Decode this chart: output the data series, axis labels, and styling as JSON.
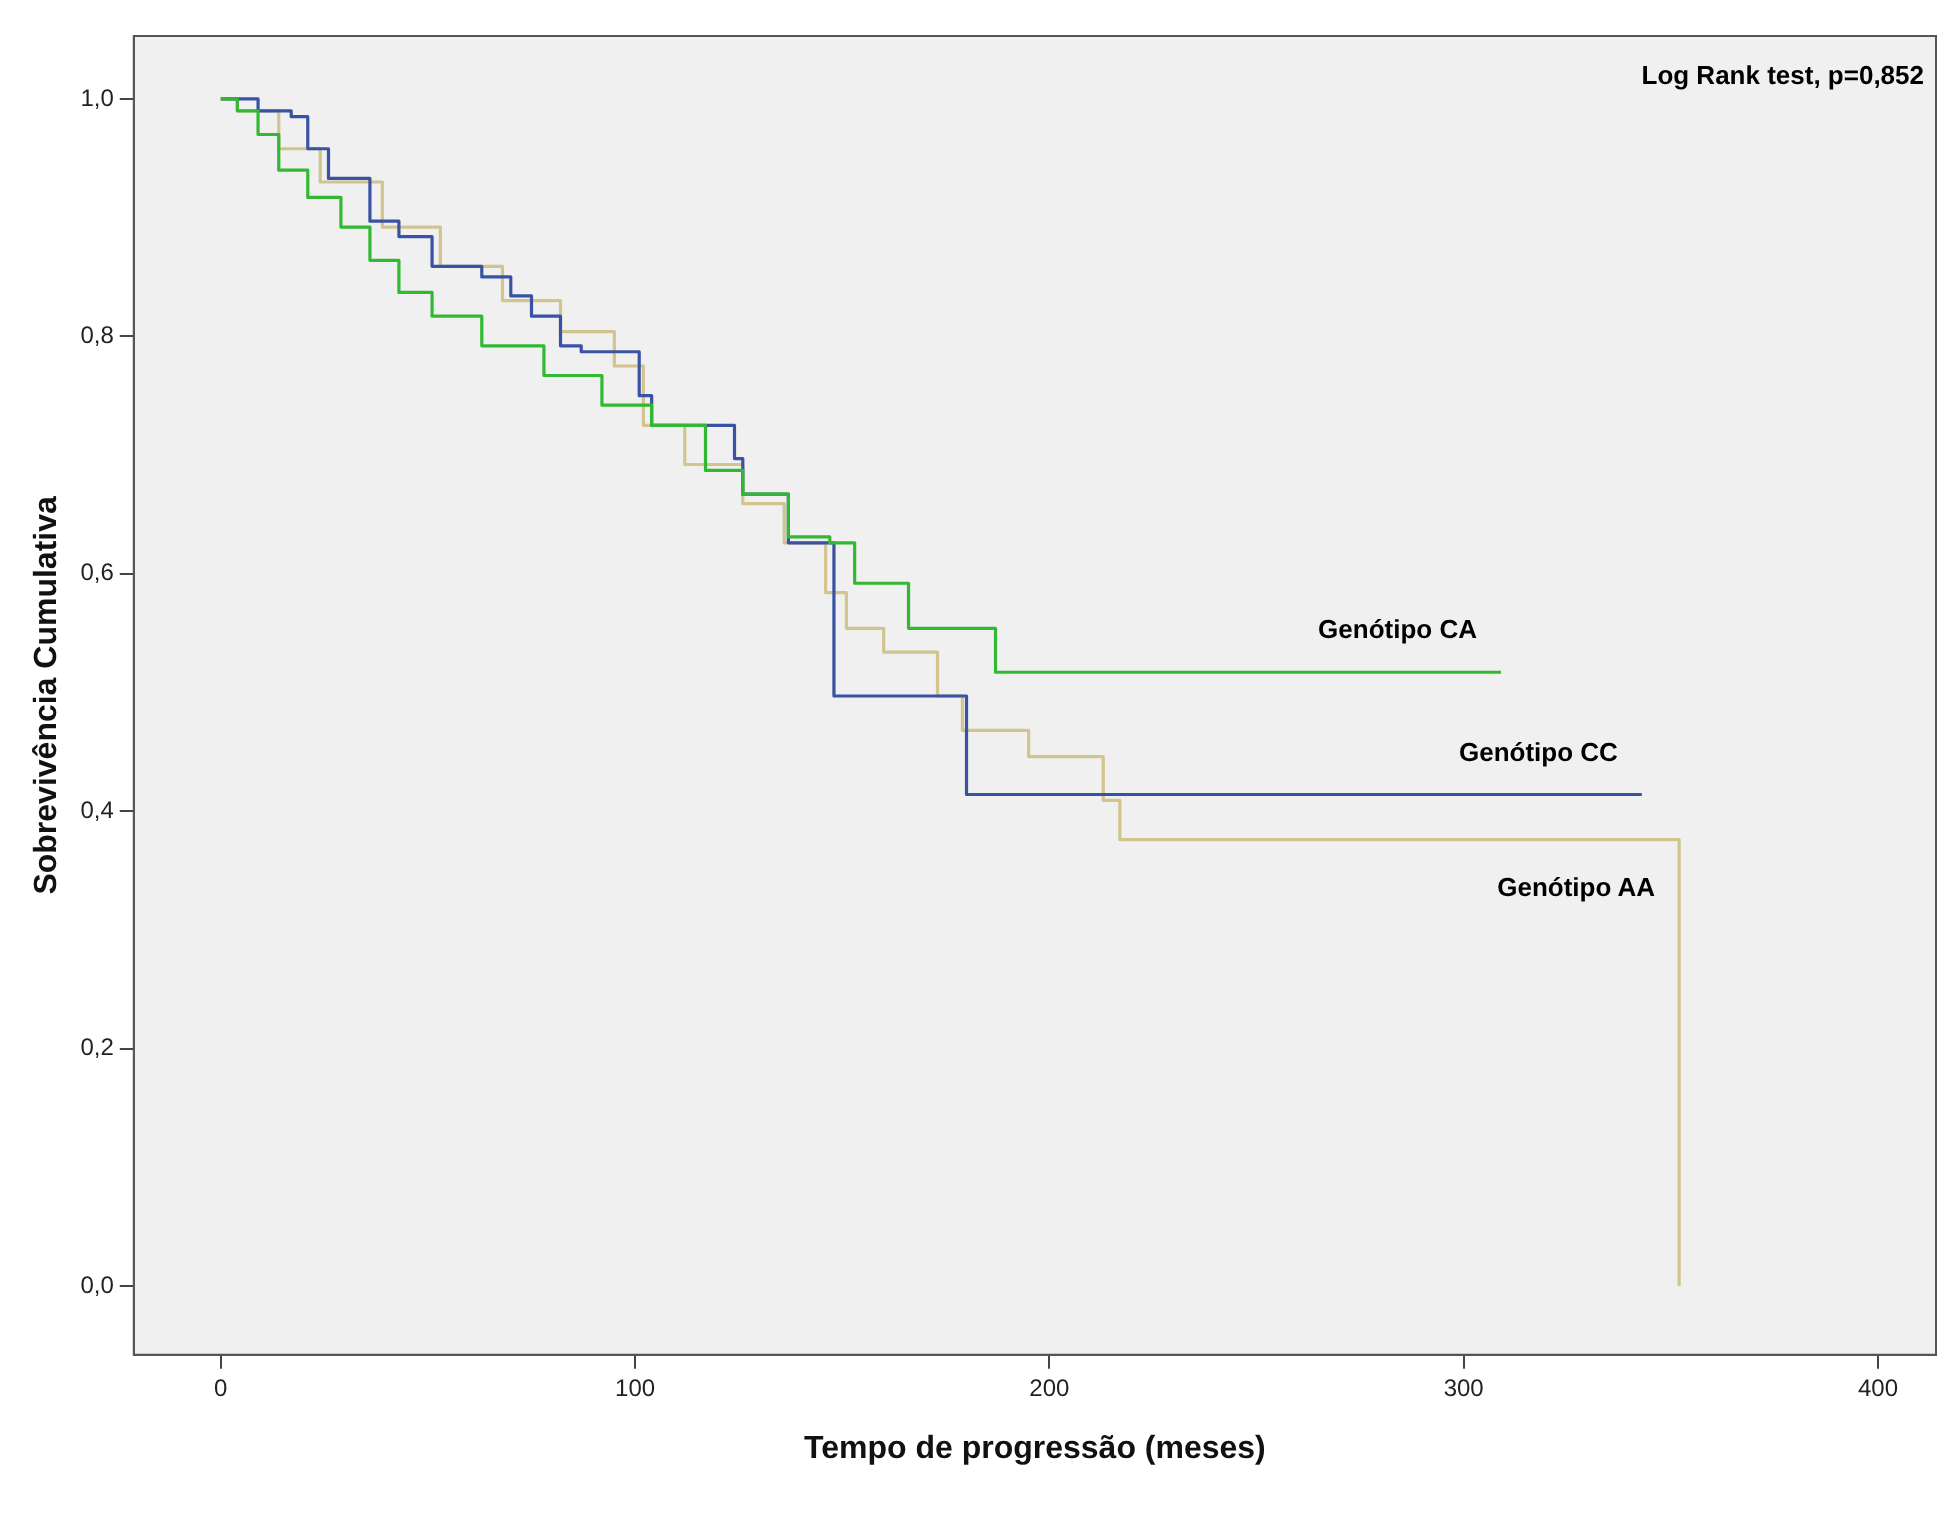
{
  "chart_data": {
    "type": "step",
    "xlabel": "Tempo de progressão (meses)",
    "ylabel": "Sobrevivência Cumulativa",
    "annotations": [
      "Log Rank test, p=0,852"
    ],
    "xlim": [
      -21,
      414
    ],
    "ylim": [
      -0.058,
      1.053
    ],
    "xticks": [
      0,
      100,
      200,
      300,
      400
    ],
    "yticks": [
      {
        "value": 0,
        "label": "0,0"
      },
      {
        "value": 0.2,
        "label": "0,2"
      },
      {
        "value": 0.4,
        "label": "0,4"
      },
      {
        "value": 0.6,
        "label": "0,6"
      },
      {
        "value": 0.8,
        "label": "0,8"
      },
      {
        "value": 1,
        "label": "1,0"
      }
    ],
    "grid": false,
    "legend": false,
    "series": [
      {
        "name": "Genótipo CA",
        "color": "#33b833",
        "x": [
          0,
          4,
          9,
          14,
          21,
          29,
          36,
          43,
          51,
          63,
          78,
          92,
          104,
          117,
          126,
          137,
          147,
          153,
          166,
          187,
          309
        ],
        "values": [
          1.0,
          0.99,
          0.97,
          0.94,
          0.917,
          0.892,
          0.864,
          0.837,
          0.817,
          0.792,
          0.767,
          0.742,
          0.725,
          0.687,
          0.667,
          0.631,
          0.626,
          0.592,
          0.554,
          0.517,
          0.517
        ]
      },
      {
        "name": "Genótipo CC",
        "color": "#3a52a4",
        "x": [
          0,
          9,
          17,
          21,
          26,
          36,
          43,
          51,
          63,
          70,
          75,
          82,
          87,
          101,
          104,
          124,
          126,
          137,
          148,
          180,
          343
        ],
        "values": [
          1.0,
          0.99,
          0.985,
          0.958,
          0.933,
          0.897,
          0.884,
          0.859,
          0.85,
          0.834,
          0.817,
          0.792,
          0.787,
          0.75,
          0.725,
          0.697,
          0.667,
          0.626,
          0.497,
          0.414,
          0.414
        ]
      },
      {
        "name": "Genótipo AA",
        "color": "#d2c48e",
        "x": [
          0,
          4,
          14,
          24,
          39,
          53,
          68,
          82,
          95,
          102,
          112,
          126,
          136,
          146,
          151,
          160,
          173,
          179,
          195,
          213,
          217,
          352,
          352
        ],
        "values": [
          1.0,
          0.99,
          0.958,
          0.93,
          0.892,
          0.859,
          0.83,
          0.804,
          0.775,
          0.725,
          0.692,
          0.659,
          0.626,
          0.584,
          0.554,
          0.534,
          0.497,
          0.468,
          0.446,
          0.409,
          0.376,
          0.376,
          0.0
        ]
      }
    ]
  }
}
